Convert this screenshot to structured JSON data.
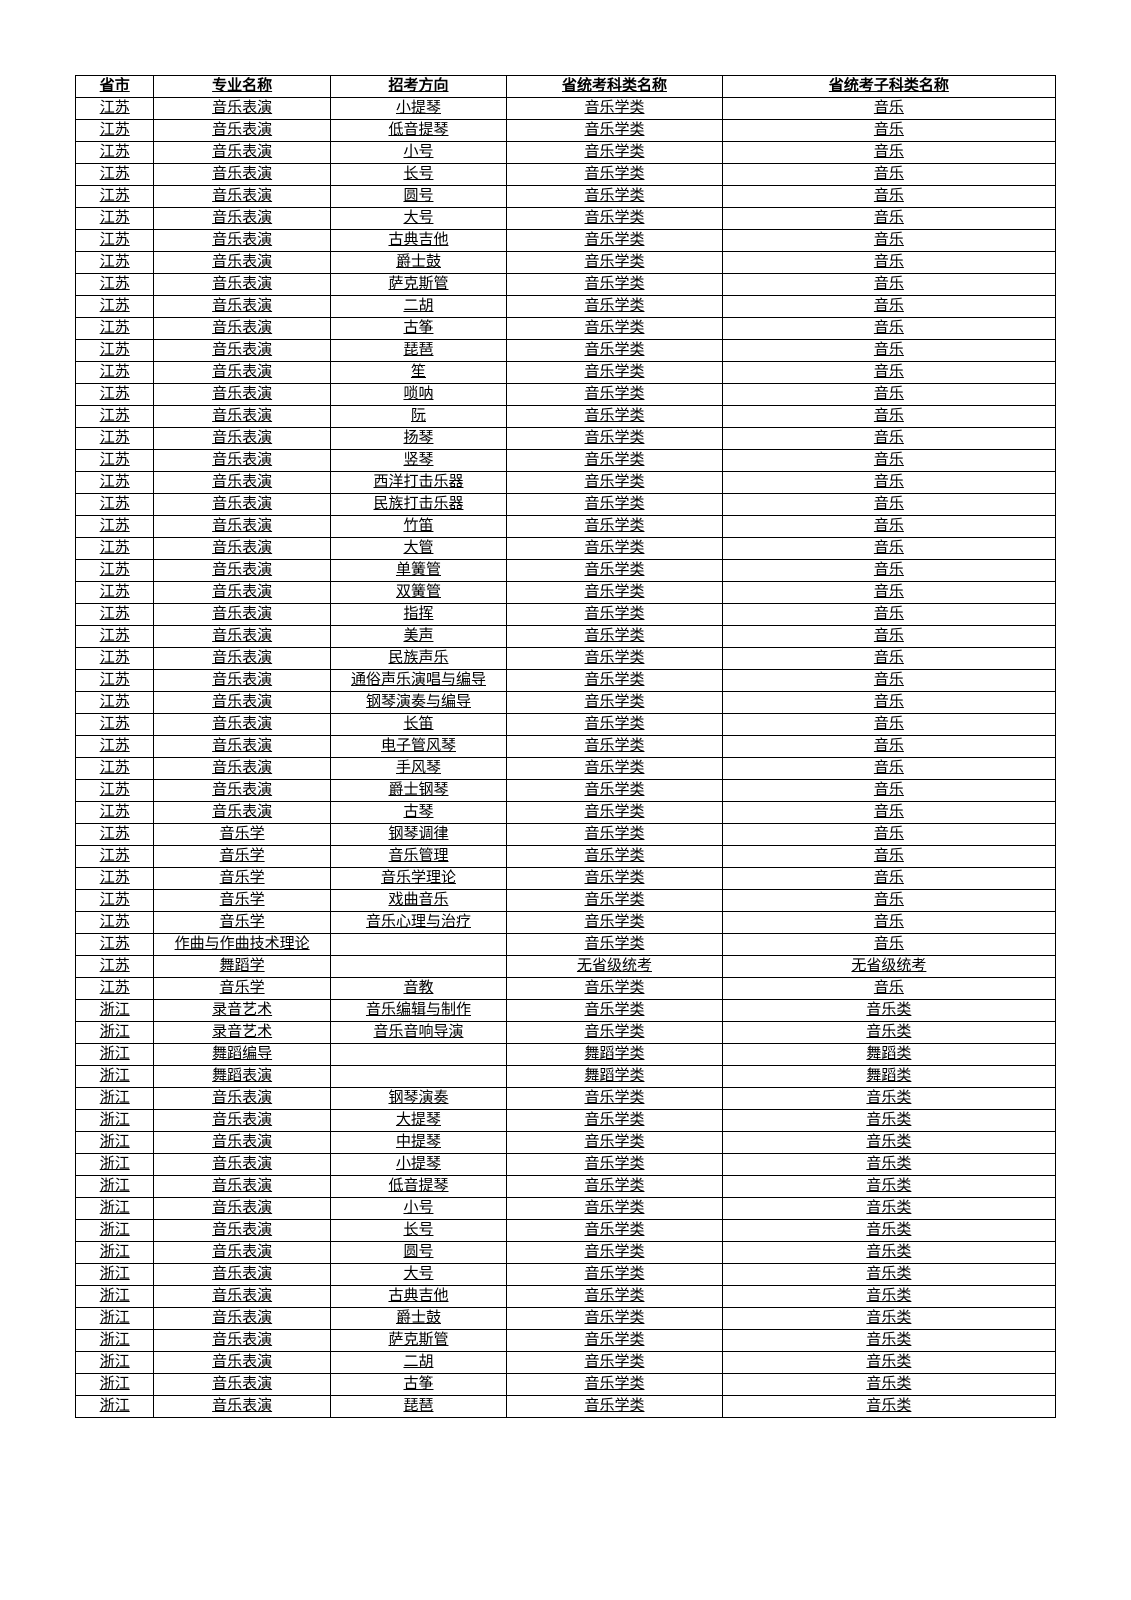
{
  "table": {
    "headers": [
      "省市",
      "专业名称",
      "招考方向",
      "省统考科类名称",
      "省统考子科类名称"
    ],
    "rows": [
      [
        "江苏",
        "音乐表演",
        "小提琴",
        "音乐学类",
        "音乐"
      ],
      [
        "江苏",
        "音乐表演",
        "低音提琴",
        "音乐学类",
        "音乐"
      ],
      [
        "江苏",
        "音乐表演",
        "小号",
        "音乐学类",
        "音乐"
      ],
      [
        "江苏",
        "音乐表演",
        "长号",
        "音乐学类",
        "音乐"
      ],
      [
        "江苏",
        "音乐表演",
        "圆号",
        "音乐学类",
        "音乐"
      ],
      [
        "江苏",
        "音乐表演",
        "大号",
        "音乐学类",
        "音乐"
      ],
      [
        "江苏",
        "音乐表演",
        "古典吉他",
        "音乐学类",
        "音乐"
      ],
      [
        "江苏",
        "音乐表演",
        "爵士鼓",
        "音乐学类",
        "音乐"
      ],
      [
        "江苏",
        "音乐表演",
        "萨克斯管",
        "音乐学类",
        "音乐"
      ],
      [
        "江苏",
        "音乐表演",
        "二胡",
        "音乐学类",
        "音乐"
      ],
      [
        "江苏",
        "音乐表演",
        "古筝",
        "音乐学类",
        "音乐"
      ],
      [
        "江苏",
        "音乐表演",
        "琵琶",
        "音乐学类",
        "音乐"
      ],
      [
        "江苏",
        "音乐表演",
        "笙",
        "音乐学类",
        "音乐"
      ],
      [
        "江苏",
        "音乐表演",
        "唢呐",
        "音乐学类",
        "音乐"
      ],
      [
        "江苏",
        "音乐表演",
        "阮",
        "音乐学类",
        "音乐"
      ],
      [
        "江苏",
        "音乐表演",
        "扬琴",
        "音乐学类",
        "音乐"
      ],
      [
        "江苏",
        "音乐表演",
        "竖琴",
        "音乐学类",
        "音乐"
      ],
      [
        "江苏",
        "音乐表演",
        "西洋打击乐器",
        "音乐学类",
        "音乐"
      ],
      [
        "江苏",
        "音乐表演",
        "民族打击乐器",
        "音乐学类",
        "音乐"
      ],
      [
        "江苏",
        "音乐表演",
        "竹笛",
        "音乐学类",
        "音乐"
      ],
      [
        "江苏",
        "音乐表演",
        "大管",
        "音乐学类",
        "音乐"
      ],
      [
        "江苏",
        "音乐表演",
        "单簧管",
        "音乐学类",
        "音乐"
      ],
      [
        "江苏",
        "音乐表演",
        "双簧管",
        "音乐学类",
        "音乐"
      ],
      [
        "江苏",
        "音乐表演",
        "指挥",
        "音乐学类",
        "音乐"
      ],
      [
        "江苏",
        "音乐表演",
        "美声",
        "音乐学类",
        "音乐"
      ],
      [
        "江苏",
        "音乐表演",
        "民族声乐",
        "音乐学类",
        "音乐"
      ],
      [
        "江苏",
        "音乐表演",
        "通俗声乐演唱与编导",
        "音乐学类",
        "音乐"
      ],
      [
        "江苏",
        "音乐表演",
        "钢琴演奏与编导",
        "音乐学类",
        "音乐"
      ],
      [
        "江苏",
        "音乐表演",
        "长笛",
        "音乐学类",
        "音乐"
      ],
      [
        "江苏",
        "音乐表演",
        "电子管风琴",
        "音乐学类",
        "音乐"
      ],
      [
        "江苏",
        "音乐表演",
        "手风琴",
        "音乐学类",
        "音乐"
      ],
      [
        "江苏",
        "音乐表演",
        "爵士钢琴",
        "音乐学类",
        "音乐"
      ],
      [
        "江苏",
        "音乐表演",
        "古琴",
        "音乐学类",
        "音乐"
      ],
      [
        "江苏",
        "音乐学",
        "钢琴调律",
        "音乐学类",
        "音乐"
      ],
      [
        "江苏",
        "音乐学",
        "音乐管理",
        "音乐学类",
        "音乐"
      ],
      [
        "江苏",
        "音乐学",
        "音乐学理论",
        "音乐学类",
        "音乐"
      ],
      [
        "江苏",
        "音乐学",
        "戏曲音乐",
        "音乐学类",
        "音乐"
      ],
      [
        "江苏",
        "音乐学",
        "音乐心理与治疗",
        "音乐学类",
        "音乐"
      ],
      [
        "江苏",
        "作曲与作曲技术理论",
        "",
        "音乐学类",
        "音乐"
      ],
      [
        "江苏",
        "舞蹈学",
        "",
        "无省级统考",
        "无省级统考"
      ],
      [
        "江苏",
        "音乐学",
        "音教",
        "音乐学类",
        "音乐"
      ],
      [
        "浙江",
        "录音艺术",
        "音乐编辑与制作",
        "音乐学类",
        "音乐类"
      ],
      [
        "浙江",
        "录音艺术",
        "音乐音响导演",
        "音乐学类",
        "音乐类"
      ],
      [
        "浙江",
        "舞蹈编导",
        "",
        "舞蹈学类",
        "舞蹈类"
      ],
      [
        "浙江",
        "舞蹈表演",
        "",
        "舞蹈学类",
        "舞蹈类"
      ],
      [
        "浙江",
        "音乐表演",
        "钢琴演奏",
        "音乐学类",
        "音乐类"
      ],
      [
        "浙江",
        "音乐表演",
        "大提琴",
        "音乐学类",
        "音乐类"
      ],
      [
        "浙江",
        "音乐表演",
        "中提琴",
        "音乐学类",
        "音乐类"
      ],
      [
        "浙江",
        "音乐表演",
        "小提琴",
        "音乐学类",
        "音乐类"
      ],
      [
        "浙江",
        "音乐表演",
        "低音提琴",
        "音乐学类",
        "音乐类"
      ],
      [
        "浙江",
        "音乐表演",
        "小号",
        "音乐学类",
        "音乐类"
      ],
      [
        "浙江",
        "音乐表演",
        "长号",
        "音乐学类",
        "音乐类"
      ],
      [
        "浙江",
        "音乐表演",
        "圆号",
        "音乐学类",
        "音乐类"
      ],
      [
        "浙江",
        "音乐表演",
        "大号",
        "音乐学类",
        "音乐类"
      ],
      [
        "浙江",
        "音乐表演",
        "古典吉他",
        "音乐学类",
        "音乐类"
      ],
      [
        "浙江",
        "音乐表演",
        "爵士鼓",
        "音乐学类",
        "音乐类"
      ],
      [
        "浙江",
        "音乐表演",
        "萨克斯管",
        "音乐学类",
        "音乐类"
      ],
      [
        "浙江",
        "音乐表演",
        "二胡",
        "音乐学类",
        "音乐类"
      ],
      [
        "浙江",
        "音乐表演",
        "古筝",
        "音乐学类",
        "音乐类"
      ],
      [
        "浙江",
        "音乐表演",
        "琵琶",
        "音乐学类",
        "音乐类"
      ]
    ]
  }
}
